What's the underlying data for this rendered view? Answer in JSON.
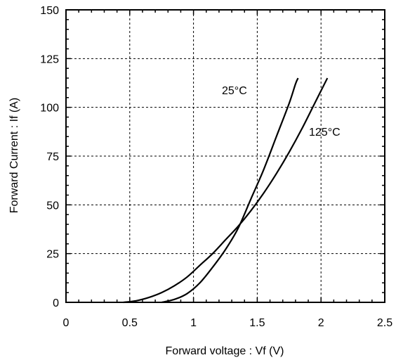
{
  "chart_data": {
    "type": "line",
    "title": "",
    "xlabel": "Forward voltage : Vf (V)",
    "ylabel": "Forward Current : If (A)",
    "xlim": [
      0,
      2.5
    ],
    "ylim": [
      0,
      150
    ],
    "xticks": [
      0,
      0.5,
      1,
      1.5,
      2,
      2.5
    ],
    "xtick_labels": [
      "0",
      "0.5",
      "1",
      "1.5",
      "2",
      "2.5"
    ],
    "yticks": [
      0,
      25,
      50,
      75,
      100,
      125,
      150
    ],
    "ytick_labels": [
      "0",
      "25",
      "50",
      "75",
      "100",
      "125",
      "150"
    ],
    "grid": true,
    "grid_style": "dashed",
    "series": [
      {
        "name": "25°C",
        "color": "#000000",
        "x": [
          0.75,
          0.85,
          0.95,
          1.05,
          1.15,
          1.25,
          1.35,
          1.45,
          1.55,
          1.65,
          1.75,
          1.8,
          1.82
        ],
        "y": [
          0,
          1.5,
          4.5,
          10,
          18,
          27,
          38,
          53,
          68,
          85,
          102,
          112,
          115
        ]
      },
      {
        "name": "125°C",
        "color": "#000000",
        "x": [
          0.45,
          0.55,
          0.65,
          0.75,
          0.85,
          0.95,
          1.05,
          1.15,
          1.25,
          1.35,
          1.45,
          1.55,
          1.65,
          1.75,
          1.85,
          1.95,
          2.05
        ],
        "y": [
          0,
          0.8,
          2.5,
          5,
          8.5,
          13,
          19,
          25,
          32,
          39,
          47,
          56,
          66,
          77,
          89,
          102,
          115
        ]
      }
    ]
  }
}
